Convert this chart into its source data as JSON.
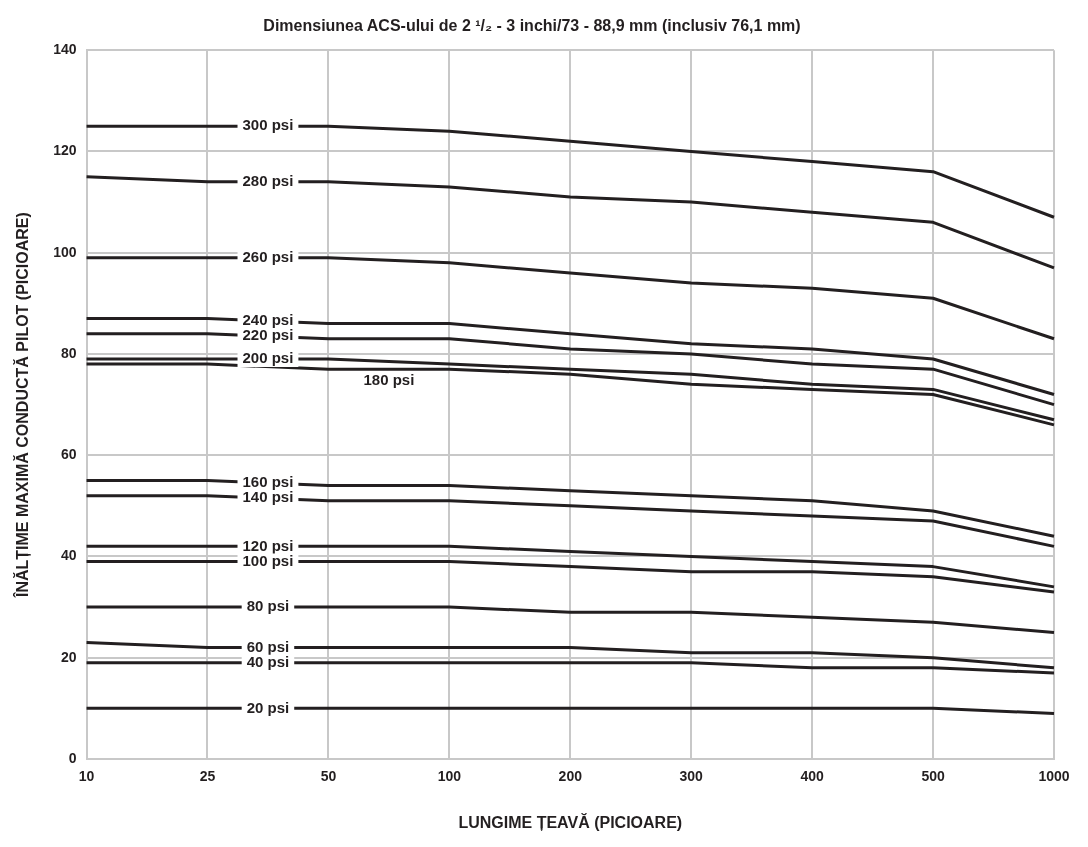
{
  "chart_data": {
    "type": "line",
    "title": "Dimensiunea ACS-ului de 2 ¹/₂ - 3 inchi/73 - 88,9 mm (inclusiv 76,1 mm)",
    "xlabel": "LUNGIME ȚEAVĂ (PICIOARE)",
    "ylabel": "ÎNĂLȚIME MAXIMĂ CONDUCTĂ PILOT (PICIOARE)",
    "categories": [
      "10",
      "25",
      "50",
      "100",
      "200",
      "300",
      "400",
      "500",
      "1000"
    ],
    "ylim": [
      0,
      140
    ],
    "yticks": [
      0,
      20,
      40,
      60,
      80,
      100,
      120,
      140
    ],
    "grid": true,
    "legend": false,
    "marker": "none",
    "line_style": "solid",
    "series": [
      {
        "name": "300 psi",
        "color": "#231f20",
        "values": [
          125,
          125,
          125,
          124,
          122,
          120,
          118,
          116,
          107
        ]
      },
      {
        "name": "280 psi",
        "color": "#231f20",
        "values": [
          115,
          114,
          114,
          113,
          111,
          110,
          108,
          106,
          97
        ]
      },
      {
        "name": "260 psi",
        "color": "#231f20",
        "values": [
          99,
          99,
          99,
          98,
          96,
          94,
          93,
          91,
          83
        ]
      },
      {
        "name": "240 psi",
        "color": "#231f20",
        "values": [
          87,
          87,
          86,
          86,
          84,
          82,
          81,
          79,
          72
        ]
      },
      {
        "name": "220 psi",
        "color": "#231f20",
        "values": [
          84,
          84,
          83,
          83,
          81,
          80,
          78,
          77,
          70
        ]
      },
      {
        "name": "200 psi",
        "color": "#231f20",
        "values": [
          79,
          79,
          79,
          78,
          77,
          76,
          74,
          73,
          67
        ]
      },
      {
        "name": "180 psi",
        "color": "#231f20",
        "values": [
          78,
          78,
          77,
          77,
          76,
          74,
          73,
          72,
          66
        ]
      },
      {
        "name": "160 psi",
        "color": "#231f20",
        "values": [
          55,
          55,
          54,
          54,
          53,
          52,
          51,
          49,
          44
        ]
      },
      {
        "name": "140 psi",
        "color": "#231f20",
        "values": [
          52,
          52,
          51,
          51,
          50,
          49,
          48,
          47,
          42
        ]
      },
      {
        "name": "120 psi",
        "color": "#231f20",
        "values": [
          42,
          42,
          42,
          42,
          41,
          40,
          39,
          38,
          34
        ]
      },
      {
        "name": "100 psi",
        "color": "#231f20",
        "values": [
          39,
          39,
          39,
          39,
          38,
          37,
          37,
          36,
          33
        ]
      },
      {
        "name": "80 psi",
        "color": "#231f20",
        "values": [
          30,
          30,
          30,
          30,
          29,
          29,
          28,
          27,
          25
        ]
      },
      {
        "name": "60 psi",
        "color": "#231f20",
        "values": [
          23,
          22,
          22,
          22,
          22,
          21,
          21,
          20,
          18
        ]
      },
      {
        "name": "40 psi",
        "color": "#231f20",
        "values": [
          19,
          19,
          19,
          19,
          19,
          19,
          18,
          18,
          17
        ]
      },
      {
        "name": "20 psi",
        "color": "#231f20",
        "values": [
          10,
          10,
          10,
          10,
          10,
          10,
          10,
          10,
          9
        ]
      }
    ]
  }
}
